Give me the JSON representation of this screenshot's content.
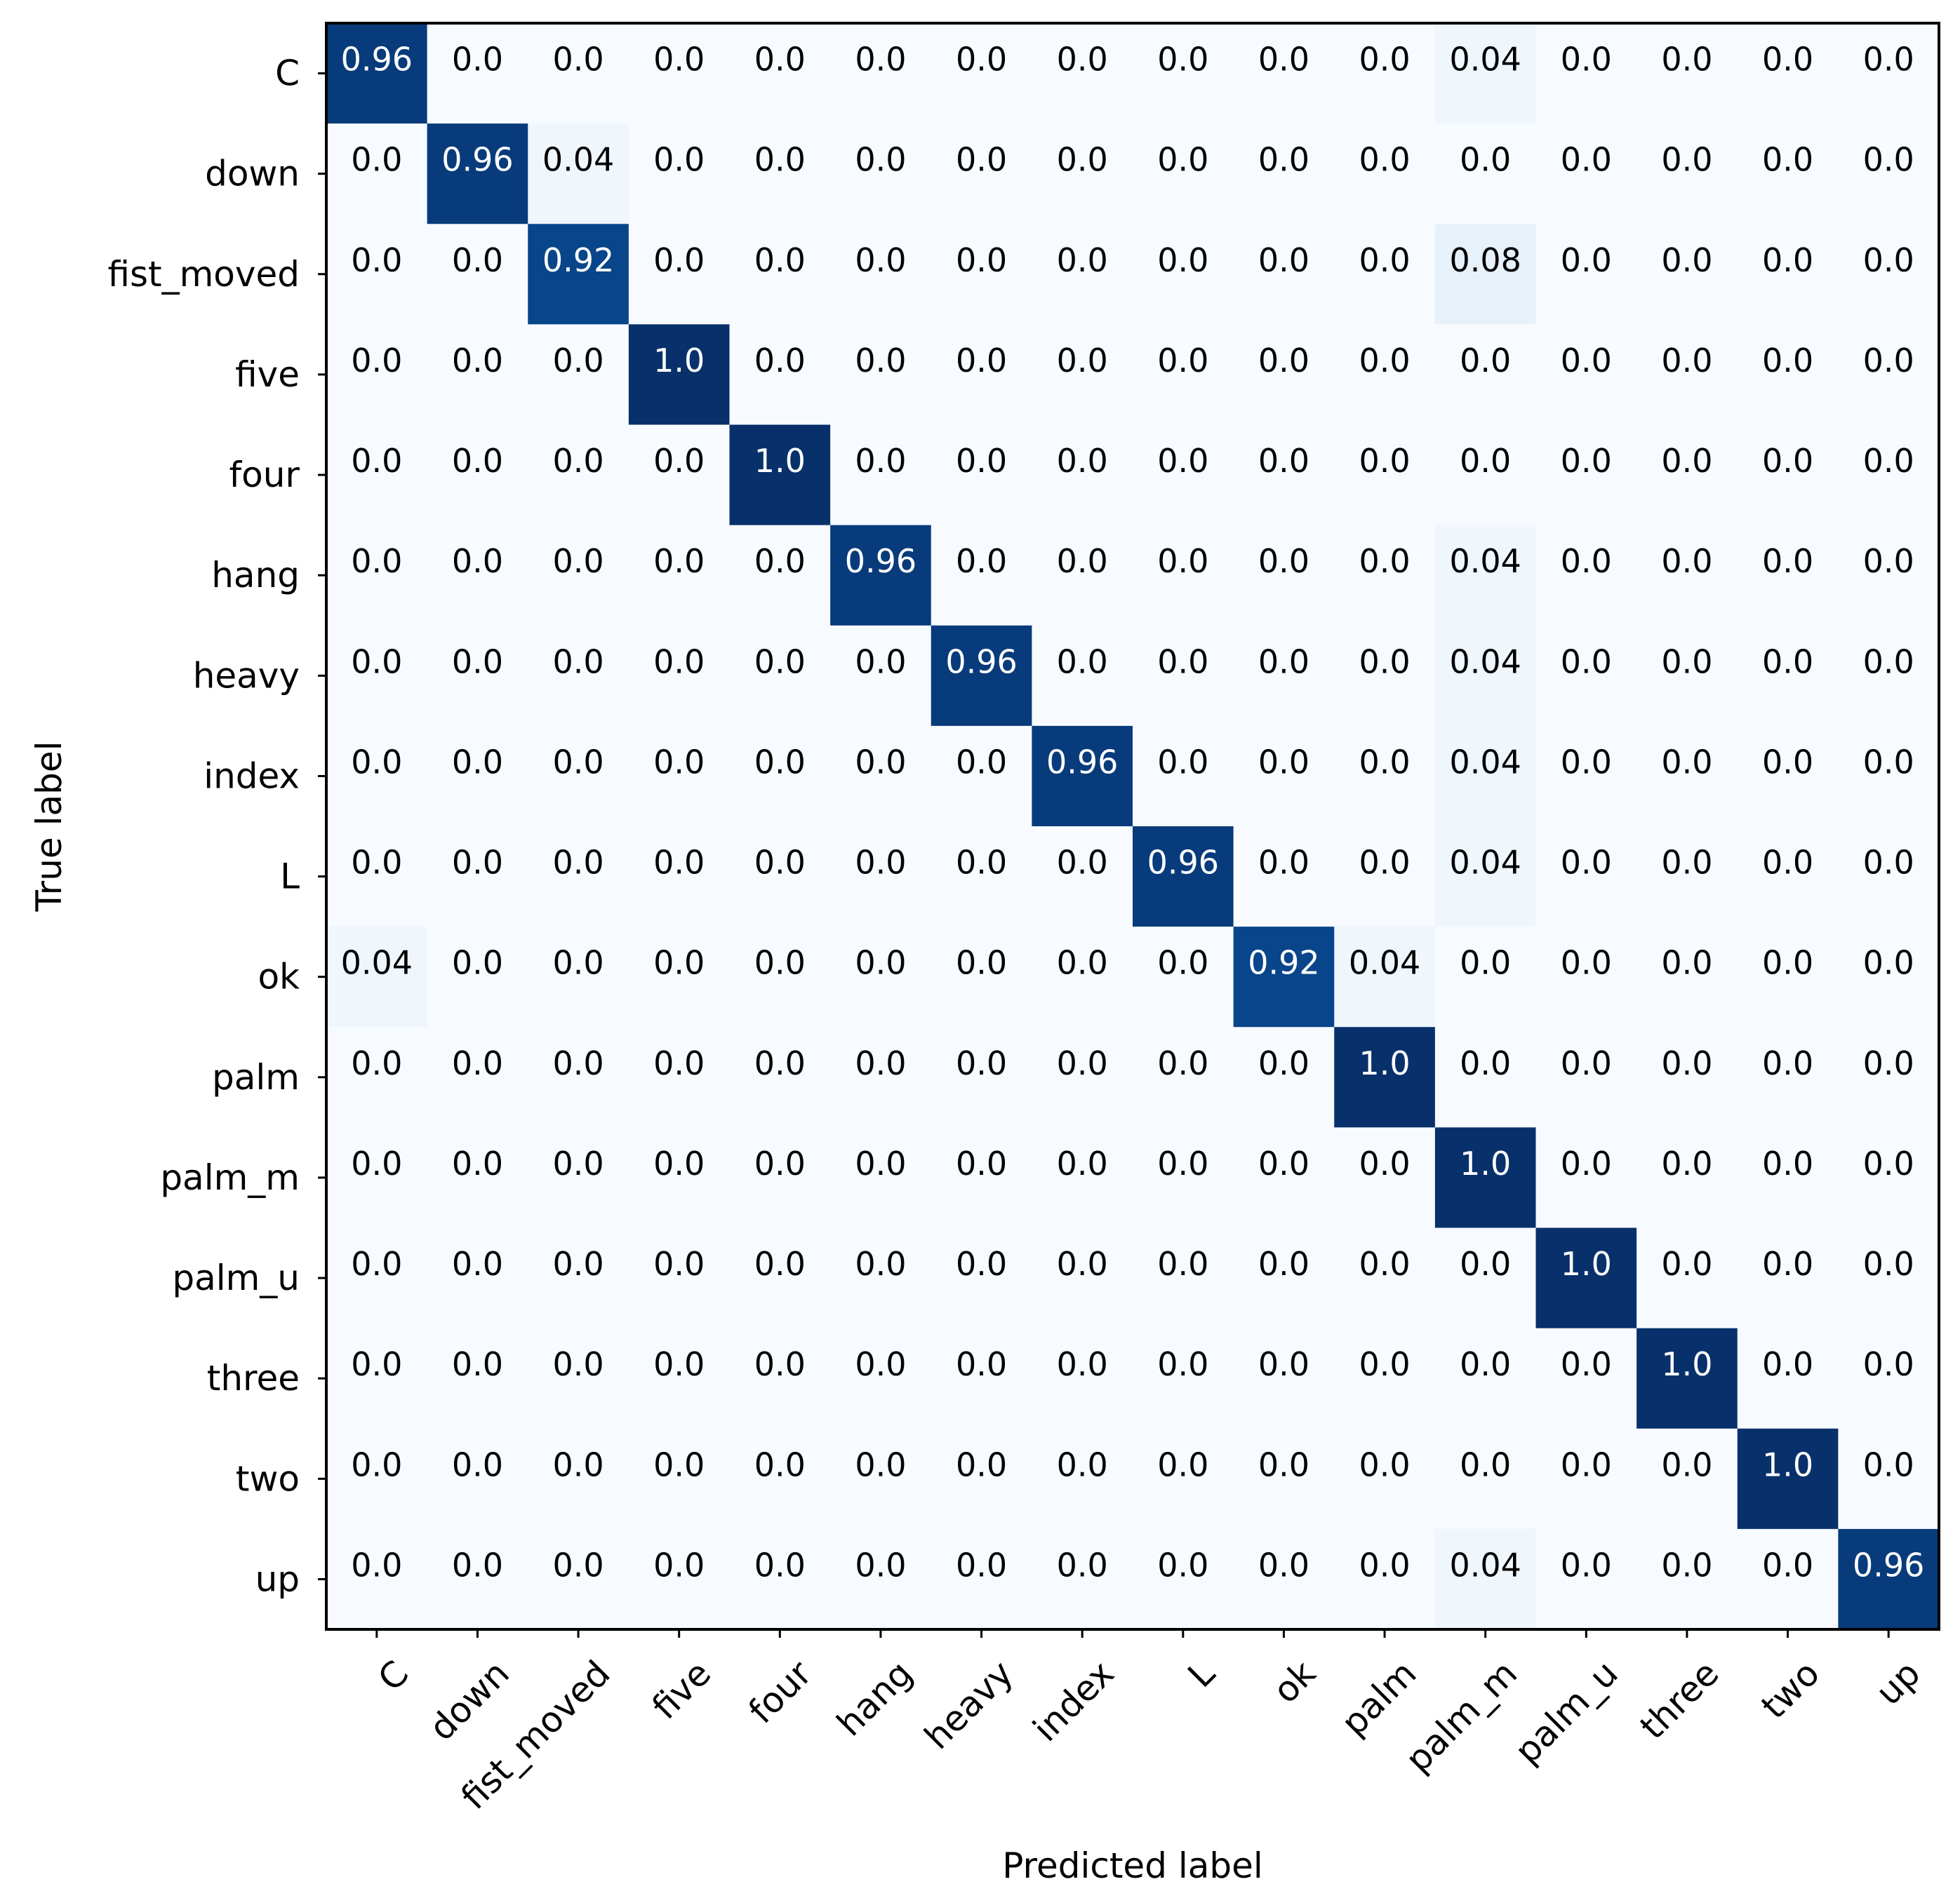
{
  "chart_data": {
    "type": "heatmap",
    "title": "",
    "xlabel": "Predicted label",
    "ylabel": "True label",
    "colormap": "Blues",
    "vmin": 0,
    "vmax": 1,
    "colors": {
      "low": "#f7fbff",
      "high": "#08306b",
      "dark_text": "#000000",
      "light_text": "#ffffff",
      "frame": "#000000"
    },
    "row_labels": [
      "C",
      "down",
      "fist_moved",
      "five",
      "four",
      "hang",
      "heavy",
      "index",
      "L",
      "ok",
      "palm",
      "palm_m",
      "palm_u",
      "three",
      "two",
      "up"
    ],
    "col_labels": [
      "C",
      "down",
      "fist_moved",
      "five",
      "four",
      "hang",
      "heavy",
      "index",
      "L",
      "ok",
      "palm",
      "palm_m",
      "palm_u",
      "three",
      "two",
      "up"
    ],
    "values": [
      [
        "0.96",
        "0.0",
        "0.0",
        "0.0",
        "0.0",
        "0.0",
        "0.0",
        "0.0",
        "0.0",
        "0.0",
        "0.0",
        "0.04",
        "0.0",
        "0.0",
        "0.0",
        "0.0"
      ],
      [
        "0.0",
        "0.96",
        "0.04",
        "0.0",
        "0.0",
        "0.0",
        "0.0",
        "0.0",
        "0.0",
        "0.0",
        "0.0",
        "0.0",
        "0.0",
        "0.0",
        "0.0",
        "0.0"
      ],
      [
        "0.0",
        "0.0",
        "0.92",
        "0.0",
        "0.0",
        "0.0",
        "0.0",
        "0.0",
        "0.0",
        "0.0",
        "0.0",
        "0.08",
        "0.0",
        "0.0",
        "0.0",
        "0.0"
      ],
      [
        "0.0",
        "0.0",
        "0.0",
        "1.0",
        "0.0",
        "0.0",
        "0.0",
        "0.0",
        "0.0",
        "0.0",
        "0.0",
        "0.0",
        "0.0",
        "0.0",
        "0.0",
        "0.0"
      ],
      [
        "0.0",
        "0.0",
        "0.0",
        "0.0",
        "1.0",
        "0.0",
        "0.0",
        "0.0",
        "0.0",
        "0.0",
        "0.0",
        "0.0",
        "0.0",
        "0.0",
        "0.0",
        "0.0"
      ],
      [
        "0.0",
        "0.0",
        "0.0",
        "0.0",
        "0.0",
        "0.96",
        "0.0",
        "0.0",
        "0.0",
        "0.0",
        "0.0",
        "0.04",
        "0.0",
        "0.0",
        "0.0",
        "0.0"
      ],
      [
        "0.0",
        "0.0",
        "0.0",
        "0.0",
        "0.0",
        "0.0",
        "0.96",
        "0.0",
        "0.0",
        "0.0",
        "0.0",
        "0.04",
        "0.0",
        "0.0",
        "0.0",
        "0.0"
      ],
      [
        "0.0",
        "0.0",
        "0.0",
        "0.0",
        "0.0",
        "0.0",
        "0.0",
        "0.96",
        "0.0",
        "0.0",
        "0.0",
        "0.04",
        "0.0",
        "0.0",
        "0.0",
        "0.0"
      ],
      [
        "0.0",
        "0.0",
        "0.0",
        "0.0",
        "0.0",
        "0.0",
        "0.0",
        "0.0",
        "0.96",
        "0.0",
        "0.0",
        "0.04",
        "0.0",
        "0.0",
        "0.0",
        "0.0"
      ],
      [
        "0.04",
        "0.0",
        "0.0",
        "0.0",
        "0.0",
        "0.0",
        "0.0",
        "0.0",
        "0.0",
        "0.92",
        "0.04",
        "0.0",
        "0.0",
        "0.0",
        "0.0",
        "0.0"
      ],
      [
        "0.0",
        "0.0",
        "0.0",
        "0.0",
        "0.0",
        "0.0",
        "0.0",
        "0.0",
        "0.0",
        "0.0",
        "1.0",
        "0.0",
        "0.0",
        "0.0",
        "0.0",
        "0.0"
      ],
      [
        "0.0",
        "0.0",
        "0.0",
        "0.0",
        "0.0",
        "0.0",
        "0.0",
        "0.0",
        "0.0",
        "0.0",
        "0.0",
        "1.0",
        "0.0",
        "0.0",
        "0.0",
        "0.0"
      ],
      [
        "0.0",
        "0.0",
        "0.0",
        "0.0",
        "0.0",
        "0.0",
        "0.0",
        "0.0",
        "0.0",
        "0.0",
        "0.0",
        "0.0",
        "1.0",
        "0.0",
        "0.0",
        "0.0"
      ],
      [
        "0.0",
        "0.0",
        "0.0",
        "0.0",
        "0.0",
        "0.0",
        "0.0",
        "0.0",
        "0.0",
        "0.0",
        "0.0",
        "0.0",
        "0.0",
        "1.0",
        "0.0",
        "0.0"
      ],
      [
        "0.0",
        "0.0",
        "0.0",
        "0.0",
        "0.0",
        "0.0",
        "0.0",
        "0.0",
        "0.0",
        "0.0",
        "0.0",
        "0.0",
        "0.0",
        "0.0",
        "1.0",
        "0.0"
      ],
      [
        "0.0",
        "0.0",
        "0.0",
        "0.0",
        "0.0",
        "0.0",
        "0.0",
        "0.0",
        "0.0",
        "0.0",
        "0.0",
        "0.04",
        "0.0",
        "0.0",
        "0.0",
        "0.96"
      ]
    ],
    "grid": false,
    "legend": "none"
  }
}
